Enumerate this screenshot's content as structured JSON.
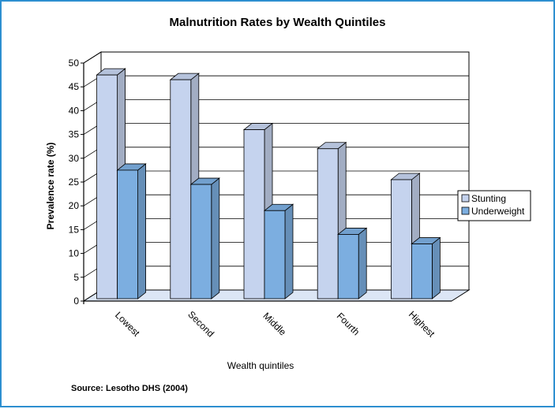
{
  "chart_data": {
    "type": "bar",
    "title": "Malnutrition Rates by Wealth Quintiles",
    "xlabel": "Wealth quintiles",
    "ylabel": "Prevalence rate (%)",
    "categories": [
      "Lowest",
      "Second",
      "Middle",
      "Fourth",
      "Highest"
    ],
    "series": [
      {
        "name": "Stunting",
        "values": [
          47,
          46,
          35.5,
          31.5,
          25
        ],
        "color": "#c5d3ee"
      },
      {
        "name": "Underweight",
        "values": [
          27,
          24,
          18.5,
          13.5,
          11.5
        ],
        "color": "#7caee0"
      }
    ],
    "ylim": [
      0,
      50
    ],
    "yticks": [
      0,
      5,
      10,
      15,
      20,
      25,
      30,
      35,
      40,
      45,
      50
    ],
    "grid": true,
    "legend": "right",
    "three_d": true
  },
  "source_note": "Source: Lesotho DHS (2004)"
}
